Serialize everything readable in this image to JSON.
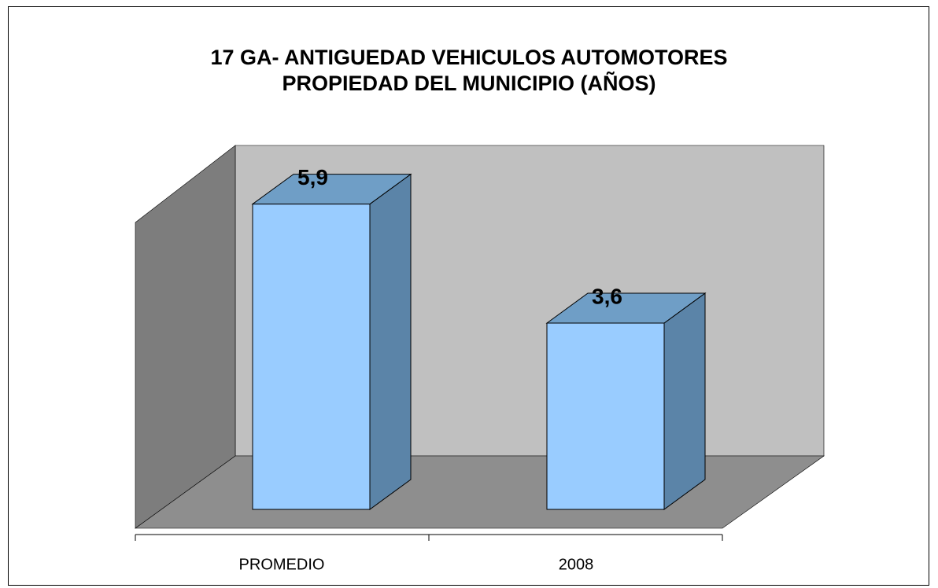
{
  "chart_data": {
    "type": "bar3d",
    "title": [
      "17 GA- ANTIGUEDAD VEHICULOS  AUTOMOTORES",
      "PROPIEDAD DEL MUNICIPIO (AÑOS)"
    ],
    "categories": [
      "PROMEDIO",
      "2008"
    ],
    "values": [
      5.9,
      3.6
    ],
    "value_labels": [
      "5,9",
      "3,6"
    ],
    "color": "#99ccff",
    "ylim": [
      0,
      6
    ]
  }
}
